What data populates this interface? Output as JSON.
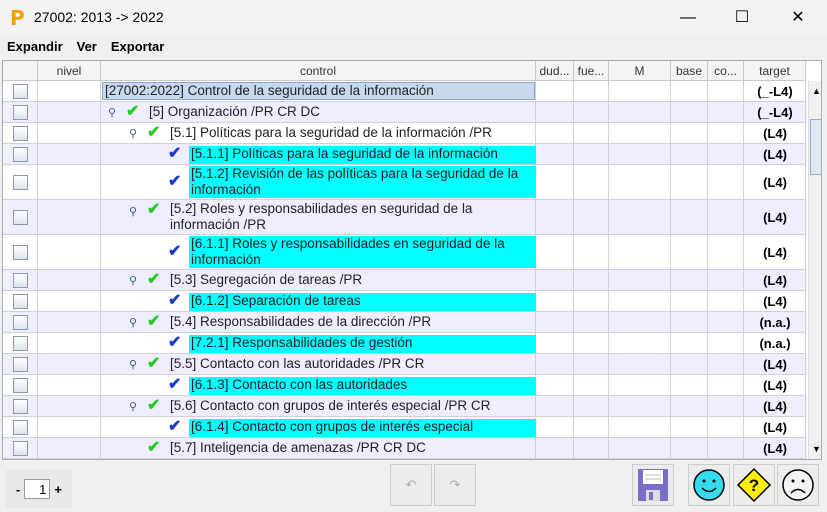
{
  "window": {
    "title": "27002: 2013 -> 2022",
    "logo": "P",
    "minimize": "—",
    "maximize": "☐",
    "close": "✕"
  },
  "menu": [
    "Expandir",
    "Ver",
    "Exportar"
  ],
  "columns": [
    "",
    "nivel",
    "control",
    "dud...",
    "fue...",
    "M",
    "base",
    "co...",
    "target"
  ],
  "rows": [
    {
      "level": 0,
      "expand": false,
      "check": "none",
      "text": "[27002:2022] Control de la seguridad de la información",
      "target": "(_-L4)",
      "two": false,
      "selected": true
    },
    {
      "level": 1,
      "expand": true,
      "check": "green",
      "text": "[5] Organización /PR CR DC",
      "target": "(_-L4)",
      "two": false
    },
    {
      "level": 2,
      "expand": true,
      "check": "green",
      "text": "[5.1] Políticas para la seguridad de la información /PR",
      "target": "(L4)",
      "two": false
    },
    {
      "level": 3,
      "expand": false,
      "check": "blue",
      "text": "[5.1.1] Políticas para la seguridad de la información",
      "target": "(L4)",
      "two": false
    },
    {
      "level": 3,
      "expand": false,
      "check": "blue",
      "text": "[5.1.2] Revisión de las políticas para la seguridad de la información",
      "target": "(L4)",
      "two": true
    },
    {
      "level": 2,
      "expand": true,
      "check": "green",
      "text": "[5.2] Roles y responsabilidades en seguridad de la información /PR",
      "target": "(L4)",
      "two": true
    },
    {
      "level": 3,
      "expand": false,
      "check": "blue",
      "text": "[6.1.1] Roles y responsabilidades en seguridad de la información",
      "target": "(L4)",
      "two": true
    },
    {
      "level": 2,
      "expand": true,
      "check": "green",
      "text": "[5.3] Segregación de tareas /PR",
      "target": "(L4)",
      "two": false
    },
    {
      "level": 3,
      "expand": false,
      "check": "blue",
      "text": "[6.1.2] Separación de tareas",
      "target": "(L4)",
      "two": false
    },
    {
      "level": 2,
      "expand": true,
      "check": "green",
      "text": "[5.4] Responsabilidades de la dirección /PR",
      "target": "(n.a.)",
      "two": false
    },
    {
      "level": 3,
      "expand": false,
      "check": "blue",
      "text": "[7.2.1] Responsabilidades de gestión",
      "target": "(n.a.)",
      "two": false
    },
    {
      "level": 2,
      "expand": true,
      "check": "green",
      "text": "[5.5] Contacto con las autoridades /PR CR",
      "target": "(L4)",
      "two": false
    },
    {
      "level": 3,
      "expand": false,
      "check": "blue",
      "text": "[6.1.3] Contacto con las autoridades",
      "target": "(L4)",
      "two": false
    },
    {
      "level": 2,
      "expand": true,
      "check": "green",
      "text": "[5.6] Contacto con grupos de interés especial /PR CR",
      "target": "(L4)",
      "two": false
    },
    {
      "level": 3,
      "expand": false,
      "check": "blue",
      "text": "[6.1.4] Contacto con grupos de interés especial",
      "target": "(L4)",
      "two": false
    },
    {
      "level": 2,
      "expand": false,
      "check": "green",
      "text": "[5.7] Inteligencia de amenazas /PR CR DC",
      "target": "(L4)",
      "two": false
    }
  ],
  "footer": {
    "minus": "-",
    "plus": "+",
    "page": "1",
    "undo": "↶",
    "redo": "↷"
  },
  "colors": {
    "leaf_highlight": "#00ffff",
    "selected": "#c8d8ee",
    "stripe": "#eeeeff",
    "green_check": "#22cc22",
    "blue_check": "#1a3ad8"
  }
}
